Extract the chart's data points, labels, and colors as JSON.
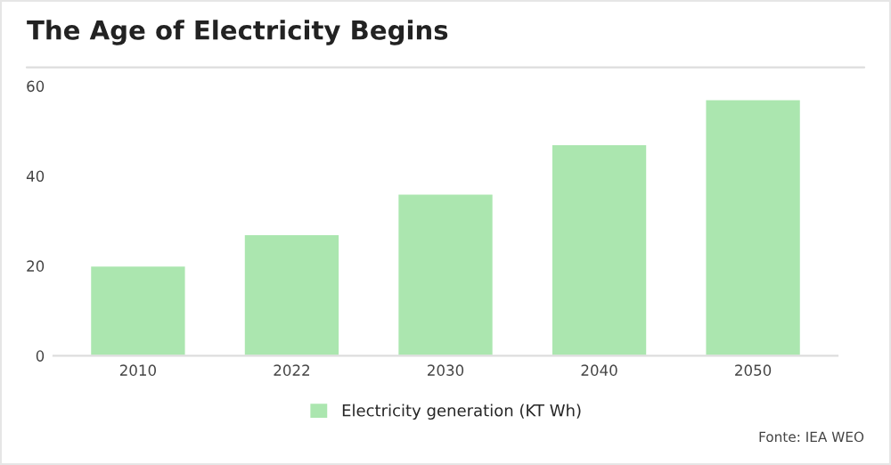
{
  "chart_data": {
    "type": "bar",
    "title": "The Age of Electricity Begins",
    "categories": [
      "2010",
      "2022",
      "2030",
      "2040",
      "2050"
    ],
    "series": [
      {
        "name": "Electricity generation (KT Wh)",
        "color": "#abe6af",
        "values": [
          20,
          27,
          36,
          47,
          57
        ]
      }
    ],
    "ylim": [
      0,
      60
    ],
    "yticks": [
      0,
      20,
      40,
      60
    ],
    "grid": false,
    "legend": "bottom",
    "annotations": [
      "Fonte: IEA WEO"
    ]
  }
}
